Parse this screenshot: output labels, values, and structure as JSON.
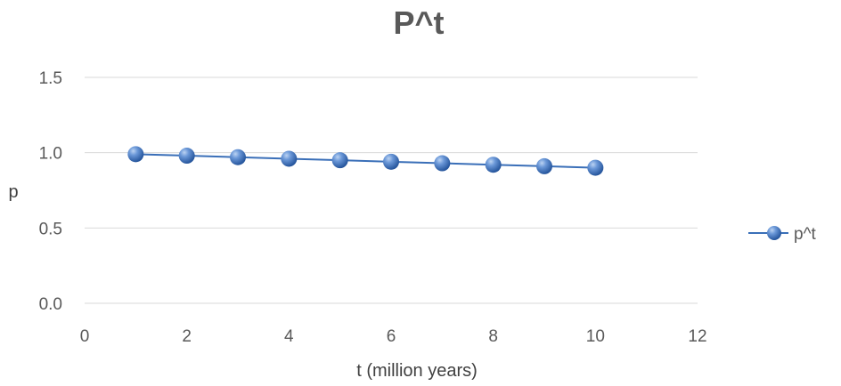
{
  "chart_data": {
    "type": "scatter",
    "title": "P^t",
    "xlabel": "t (million years)",
    "ylabel": "p",
    "xlim": [
      0,
      12
    ],
    "ylim": [
      0.0,
      1.5
    ],
    "xticks": [
      "0",
      "2",
      "4",
      "6",
      "8",
      "10",
      "12"
    ],
    "yticks": [
      "0.0",
      "0.5",
      "1.0",
      "1.5"
    ],
    "grid": true,
    "legend_position": "right",
    "series": [
      {
        "name": "p^t",
        "color": "#3a6fb8",
        "x": [
          1,
          2,
          3,
          4,
          5,
          6,
          7,
          8,
          9,
          10
        ],
        "y": [
          0.99,
          0.98,
          0.97,
          0.96,
          0.95,
          0.94,
          0.93,
          0.92,
          0.91,
          0.9
        ]
      }
    ]
  }
}
